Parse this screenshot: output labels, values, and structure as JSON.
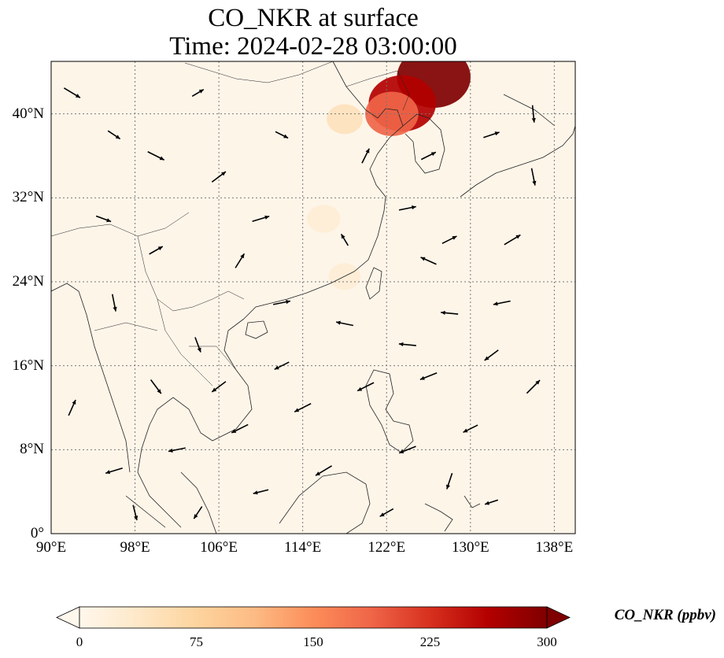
{
  "title": "CO_NKR at surface",
  "subtitle": "Time: 2024-02-28 03:00:00",
  "colorbar": {
    "label": "CO_NKR (ppbv)",
    "ticks": [
      "0",
      "75",
      "150",
      "225",
      "300"
    ],
    "min": 0,
    "max": 300,
    "colormap": "OrRd",
    "colors": [
      "#fff7ec",
      "#fee8c8",
      "#fdd49e",
      "#fdbb84",
      "#fc8d59",
      "#ef6548",
      "#d7301f",
      "#b30000",
      "#7f0000"
    ]
  },
  "map": {
    "lon_range": [
      90,
      140
    ],
    "lat_range": [
      0,
      45
    ],
    "lon_ticks": [
      "90°E",
      "98°E",
      "106°E",
      "114°E",
      "122°E",
      "130°E",
      "138°E"
    ],
    "lat_ticks": [
      "0°",
      "8°N",
      "16°N",
      "24°N",
      "32°N",
      "40°N"
    ],
    "gridlines": true,
    "field_background": "#fef5e9",
    "plumes": [
      {
        "lon": 126.5,
        "lat": 43.5,
        "value": 300
      },
      {
        "lon": 123.5,
        "lat": 41.0,
        "value": 260
      },
      {
        "lon": 122.5,
        "lat": 40.0,
        "value": 170
      },
      {
        "lon": 118.0,
        "lat": 39.5,
        "value": 60
      },
      {
        "lon": 116.0,
        "lat": 30.0,
        "value": 45
      },
      {
        "lon": 118.0,
        "lat": 24.5,
        "value": 35
      }
    ],
    "wind_vectors": [
      {
        "lon": 92,
        "lat": 42,
        "u": 1,
        "v": -0.6
      },
      {
        "lon": 96,
        "lat": 38,
        "u": 0.6,
        "v": -0.4
      },
      {
        "lon": 100,
        "lat": 36,
        "u": 1,
        "v": -0.5
      },
      {
        "lon": 106,
        "lat": 34,
        "u": 0.8,
        "v": 0.6
      },
      {
        "lon": 110,
        "lat": 30,
        "u": 1,
        "v": 0.3
      },
      {
        "lon": 95,
        "lat": 30,
        "u": 0.8,
        "v": -0.3
      },
      {
        "lon": 100,
        "lat": 27,
        "u": 0.7,
        "v": 0.4
      },
      {
        "lon": 108,
        "lat": 26,
        "u": 0.5,
        "v": 0.8
      },
      {
        "lon": 96,
        "lat": 22,
        "u": 0.2,
        "v": -1
      },
      {
        "lon": 104,
        "lat": 18,
        "u": 0.3,
        "v": -0.8
      },
      {
        "lon": 112,
        "lat": 22,
        "u": 1,
        "v": 0.2
      },
      {
        "lon": 118,
        "lat": 20,
        "u": -1,
        "v": 0.2
      },
      {
        "lon": 124,
        "lat": 18,
        "u": -1,
        "v": 0.1
      },
      {
        "lon": 128,
        "lat": 21,
        "u": -1,
        "v": 0.1
      },
      {
        "lon": 133,
        "lat": 22,
        "u": -1,
        "v": -0.2
      },
      {
        "lon": 126,
        "lat": 15,
        "u": -1,
        "v": -0.4
      },
      {
        "lon": 132,
        "lat": 17,
        "u": -0.8,
        "v": -0.6
      },
      {
        "lon": 120,
        "lat": 14,
        "u": -1,
        "v": -0.5
      },
      {
        "lon": 114,
        "lat": 12,
        "u": -1,
        "v": -0.5
      },
      {
        "lon": 108,
        "lat": 10,
        "u": -1,
        "v": -0.5
      },
      {
        "lon": 102,
        "lat": 8,
        "u": -1,
        "v": -0.2
      },
      {
        "lon": 96,
        "lat": 6,
        "u": -1,
        "v": -0.3
      },
      {
        "lon": 116,
        "lat": 6,
        "u": -1,
        "v": -0.6
      },
      {
        "lon": 124,
        "lat": 8,
        "u": -1,
        "v": -0.4
      },
      {
        "lon": 130,
        "lat": 10,
        "u": -0.8,
        "v": -0.4
      },
      {
        "lon": 110,
        "lat": 4,
        "u": -0.8,
        "v": -0.2
      },
      {
        "lon": 126,
        "lat": 26,
        "u": -0.9,
        "v": 0.4
      },
      {
        "lon": 124,
        "lat": 31,
        "u": 1,
        "v": 0.2
      },
      {
        "lon": 128,
        "lat": 28,
        "u": 0.8,
        "v": 0.4
      },
      {
        "lon": 134,
        "lat": 28,
        "u": 1,
        "v": 0.6
      },
      {
        "lon": 136,
        "lat": 34,
        "u": 0.2,
        "v": -1
      },
      {
        "lon": 132,
        "lat": 38,
        "u": 0.9,
        "v": 0.3
      },
      {
        "lon": 120,
        "lat": 36,
        "u": 0.4,
        "v": 0.8
      },
      {
        "lon": 126,
        "lat": 36,
        "u": 0.8,
        "v": 0.4
      },
      {
        "lon": 112,
        "lat": 38,
        "u": 0.6,
        "v": -0.3
      },
      {
        "lon": 104,
        "lat": 42,
        "u": 0.5,
        "v": 0.3
      },
      {
        "lon": 136,
        "lat": 14,
        "u": 0.8,
        "v": 0.8
      },
      {
        "lon": 136,
        "lat": 40,
        "u": 0.1,
        "v": -1
      },
      {
        "lon": 118,
        "lat": 28,
        "u": -0.3,
        "v": 0.5
      },
      {
        "lon": 100,
        "lat": 14,
        "u": 0.6,
        "v": -0.8
      },
      {
        "lon": 106,
        "lat": 14,
        "u": -0.8,
        "v": -0.6
      },
      {
        "lon": 112,
        "lat": 16,
        "u": -0.8,
        "v": -0.4
      },
      {
        "lon": 92,
        "lat": 12,
        "u": 0.4,
        "v": 0.9
      },
      {
        "lon": 98,
        "lat": 2,
        "u": 0.2,
        "v": -0.8
      },
      {
        "lon": 104,
        "lat": 2,
        "u": -0.4,
        "v": -0.6
      },
      {
        "lon": 122,
        "lat": 2,
        "u": -0.7,
        "v": -0.4
      },
      {
        "lon": 132,
        "lat": 3,
        "u": -0.6,
        "v": -0.2
      },
      {
        "lon": 128,
        "lat": 5,
        "u": -0.3,
        "v": -0.9
      }
    ]
  }
}
